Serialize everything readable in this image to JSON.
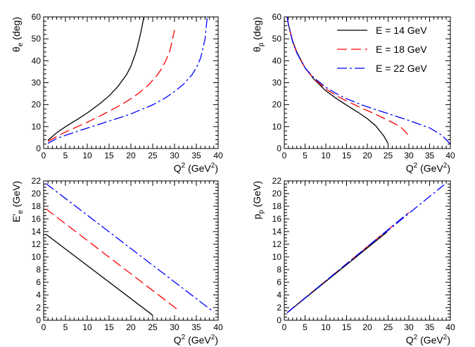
{
  "chart_data": [
    {
      "type": "line",
      "id": "theta-e",
      "title": "",
      "xlabel": {
        "main": "Q",
        "sup": "2",
        "unit_pre": " (GeV",
        "unit_sup": "2",
        "unit_post": ")"
      },
      "ylabel": {
        "main": "θ",
        "sub": "e",
        "unit": " (deg)"
      },
      "xlim": [
        0,
        40
      ],
      "ylim": [
        0,
        60
      ],
      "xticks": [
        0,
        5,
        10,
        15,
        20,
        25,
        30,
        35,
        40
      ],
      "yticks": [
        0,
        10,
        20,
        30,
        40,
        50,
        60
      ],
      "series": [
        {
          "name": "E = 14 GeV",
          "color": "#000000",
          "dash": "solid",
          "x": [
            1,
            3,
            5,
            8,
            10,
            13,
            15,
            17,
            19,
            20,
            21,
            21.5,
            22,
            22.5,
            22.8,
            23
          ],
          "y": [
            3.8,
            7.2,
            9.9,
            13.6,
            16.2,
            20.6,
            24.0,
            28.2,
            33.7,
            37.5,
            43.0,
            46.4,
            50.6,
            55.0,
            58.3,
            60
          ]
        },
        {
          "name": "E = 18 GeV",
          "color": "#ff0000",
          "dash": "dash",
          "x": [
            1,
            3,
            5,
            8,
            10,
            13,
            15,
            18,
            20,
            22,
            24,
            26,
            27,
            28,
            29,
            30
          ],
          "y": [
            3.2,
            5.5,
            7.5,
            10.2,
            12.0,
            14.9,
            17.0,
            20.2,
            22.7,
            25.5,
            28.9,
            33.4,
            36.3,
            40.0,
            45.0,
            54.0
          ]
        },
        {
          "name": "E = 22 GeV",
          "color": "#0000ff",
          "dash": "dashdot",
          "x": [
            1,
            3,
            5,
            8,
            10,
            13,
            15,
            18,
            20,
            25,
            28,
            30,
            32,
            34,
            35,
            36,
            37,
            37.5
          ],
          "y": [
            2.3,
            4.6,
            6.0,
            8.0,
            9.3,
            11.2,
            12.5,
            14.4,
            15.8,
            19.9,
            23.2,
            26.0,
            29.2,
            33.6,
            36.8,
            41.4,
            50.0,
            60
          ]
        }
      ]
    },
    {
      "type": "line",
      "id": "theta-p",
      "title": "",
      "xlabel": {
        "main": "Q",
        "sup": "2",
        "unit_pre": " (GeV",
        "unit_sup": "2",
        "unit_post": ")"
      },
      "ylabel": {
        "main": "θ",
        "sub": "p",
        "unit": " (deg)"
      },
      "xlim": [
        0,
        40
      ],
      "ylim": [
        0,
        60
      ],
      "xticks": [
        0,
        5,
        10,
        15,
        20,
        25,
        30,
        35,
        40
      ],
      "yticks": [
        0,
        10,
        20,
        30,
        40,
        50,
        60
      ],
      "legend": {
        "position": "top-right",
        "entries": [
          "E = 14 GeV",
          "E = 18 GeV",
          "E = 22 GeV"
        ]
      },
      "series": [
        {
          "name": "E = 14 GeV",
          "color": "#000000",
          "dash": "solid",
          "x": [
            0.7,
            1,
            2,
            3,
            5,
            7,
            10,
            13,
            15,
            18,
            20,
            22,
            24,
            25
          ],
          "y": [
            60,
            56.5,
            49.0,
            44.0,
            36.8,
            31.9,
            26.3,
            22.2,
            19.8,
            16.2,
            13.6,
            10.4,
            5.6,
            2.3
          ]
        },
        {
          "name": "E = 18 GeV",
          "color": "#ff0000",
          "dash": "dash",
          "x": [
            0.7,
            1,
            2,
            3,
            5,
            7,
            10,
            13,
            15,
            18,
            20,
            22,
            25,
            28,
            30
          ],
          "y": [
            60,
            56.4,
            48.7,
            43.7,
            36.6,
            32.1,
            27.1,
            23.6,
            21.7,
            19.0,
            17.3,
            15.6,
            12.9,
            9.9,
            5.9
          ]
        },
        {
          "name": "E = 22 GeV",
          "color": "#0000ff",
          "dash": "dashdot",
          "x": [
            0.7,
            1,
            2,
            3,
            5,
            7,
            10,
            13,
            15,
            18,
            20,
            25,
            30,
            35,
            38,
            40
          ],
          "y": [
            60,
            56.3,
            48.6,
            43.6,
            36.7,
            32.5,
            27.9,
            24.5,
            22.7,
            20.4,
            19.0,
            15.9,
            12.8,
            9.4,
            6.0,
            2.0
          ]
        }
      ]
    },
    {
      "type": "line",
      "id": "e-prime",
      "title": "",
      "xlabel": {
        "main": "Q",
        "sup": "2",
        "unit_pre": " (GeV",
        "unit_sup": "2",
        "unit_post": ")"
      },
      "ylabel": {
        "main": "E'",
        "sub": "e",
        "unit": " (GeV)"
      },
      "xlim": [
        0,
        40
      ],
      "ylim": [
        0,
        22
      ],
      "xticks": [
        0,
        5,
        10,
        15,
        20,
        25,
        30,
        35,
        40
      ],
      "yticks": [
        0,
        2,
        4,
        6,
        8,
        10,
        12,
        14,
        16,
        18,
        20,
        22
      ],
      "series": [
        {
          "name": "E = 14 GeV",
          "color": "#000000",
          "dash": "solid",
          "x": [
            0.5,
            25
          ],
          "y": [
            13.6,
            0.8
          ]
        },
        {
          "name": "E = 18 GeV",
          "color": "#ff0000",
          "dash": "dash",
          "x": [
            0.5,
            30.5
          ],
          "y": [
            17.6,
            1.8
          ]
        },
        {
          "name": "E = 22 GeV",
          "color": "#0000ff",
          "dash": "dashdot",
          "x": [
            0.5,
            39
          ],
          "y": [
            21.6,
            1.3
          ]
        }
      ]
    },
    {
      "type": "line",
      "id": "p-p",
      "title": "",
      "xlabel": {
        "main": "Q",
        "sup": "2",
        "unit_pre": " (GeV",
        "unit_sup": "2",
        "unit_post": ")"
      },
      "ylabel": {
        "main": "p",
        "sub": "p",
        "unit": " (GeV)"
      },
      "xlim": [
        0,
        40
      ],
      "ylim": [
        0,
        22
      ],
      "xticks": [
        0,
        5,
        10,
        15,
        20,
        25,
        30,
        35,
        40
      ],
      "yticks": [
        0,
        2,
        4,
        6,
        8,
        10,
        12,
        14,
        16,
        18,
        20,
        22
      ],
      "series": [
        {
          "name": "E = 22 GeV",
          "color": "#0000ff",
          "dash": "dashdot",
          "x": [
            0.7,
            38.5
          ],
          "y": [
            1.2,
            21.4
          ]
        },
        {
          "name": "E = 18 GeV",
          "color": "#ff0000",
          "dash": "dash",
          "x": [
            0.7,
            30
          ],
          "y": [
            1.2,
            17.0
          ]
        },
        {
          "name": "E = 14 GeV",
          "color": "#000000",
          "dash": "solid",
          "x": [
            0.7,
            24.7
          ],
          "y": [
            1.2,
            13.9
          ]
        },
        {
          "name": "E = 22 GeV",
          "color": "#0000ff",
          "dash": "dashdot",
          "x": [
            0.7,
            30
          ],
          "y": [
            1.2,
            17.0
          ]
        }
      ]
    }
  ]
}
